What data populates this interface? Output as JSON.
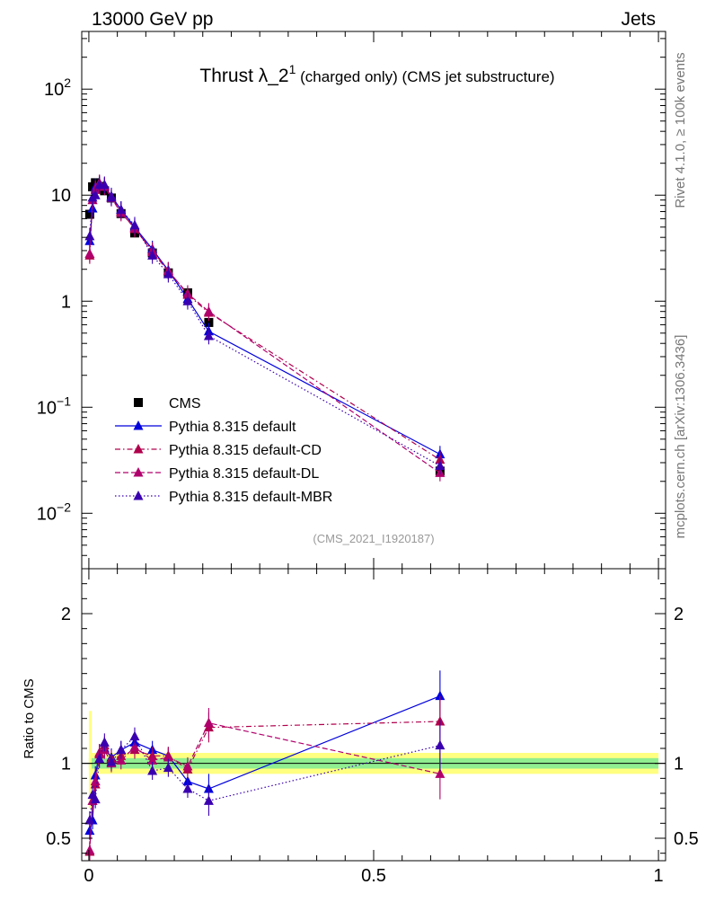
{
  "header": {
    "energy_label": "13000 GeV pp",
    "process_label": "Jets"
  },
  "side_labels": {
    "rivet": "Rivet 4.1.0, ≥ 100k events",
    "mcplots": "mcplots.cern.ch [arXiv:1306.3436]"
  },
  "colors": {
    "cms": "#000000",
    "default": "#0000dd",
    "default_cd": "#b0004c",
    "default_dl": "#b0006c",
    "default_mbr": "#3a00b0",
    "band_inner": "#90ee90",
    "band_outer": "#ffff80"
  },
  "chart_data": [
    {
      "panel": "main",
      "type": "line",
      "title": "Thrust λ_2¹ (charged only) (CMS jet substructure)",
      "title_main": "Thrust λ_2",
      "title_sup": "1",
      "title_rest": " (charged only) (CMS jet substructure)",
      "analysis_tag": "(CMS_2021_I1920187)",
      "yscale": "log",
      "xlim": [
        -0.0125,
        1.0125
      ],
      "ylim": [
        0.003,
        350
      ],
      "ytick_labels": [
        {
          "value": 100,
          "base": "10",
          "exp": "2"
        },
        {
          "value": 10,
          "text": "10"
        },
        {
          "value": 1,
          "text": "1"
        },
        {
          "value": 0.1,
          "base": "10",
          "exp": "−1"
        },
        {
          "value": 0.01,
          "base": "10",
          "exp": "−2"
        }
      ],
      "x": [
        0.0015,
        0.0065,
        0.0115,
        0.0185,
        0.0275,
        0.0395,
        0.0565,
        0.0805,
        0.1115,
        0.1395,
        0.1735,
        0.2105,
        0.6165
      ],
      "series": [
        {
          "name": "CMS",
          "key": "cms",
          "marker": "square",
          "dash": "none",
          "values": [
            6.6,
            12.0,
            13.1,
            12.1,
            11.0,
            9.4,
            6.7,
            4.4,
            2.85,
            1.85,
            1.2,
            0.63,
            0.025
          ]
        },
        {
          "name": "Pythia 8.315 default",
          "key": "default",
          "marker": "triangle",
          "dash": "solid",
          "values": [
            3.7,
            7.5,
            12.0,
            13.0,
            12.2,
            9.8,
            7.3,
            5.0,
            3.1,
            1.95,
            1.05,
            0.52,
            0.036
          ]
        },
        {
          "name": "Pythia 8.315 default-CD",
          "key": "default_cd",
          "marker": "triangle",
          "dash": "dashdot",
          "values": [
            2.7,
            9.0,
            11.2,
            13.0,
            12.3,
            9.6,
            7.0,
            4.8,
            3.0,
            1.95,
            1.15,
            0.78,
            0.032
          ]
        },
        {
          "name": "Pythia 8.315 default-DL",
          "key": "default_dl",
          "marker": "triangle",
          "dash": "dashed",
          "values": [
            2.8,
            9.0,
            11.5,
            12.8,
            12.0,
            9.4,
            6.8,
            4.9,
            2.9,
            1.92,
            1.18,
            0.8,
            0.024
          ]
        },
        {
          "name": "Pythia 8.315 default-MBR",
          "key": "default_mbr",
          "marker": "triangle",
          "dash": "dotted",
          "values": [
            4.1,
            9.5,
            10.0,
            12.5,
            12.5,
            9.5,
            7.3,
            5.2,
            2.7,
            1.8,
            1.0,
            0.47,
            0.028
          ]
        }
      ]
    },
    {
      "panel": "ratio",
      "type": "line",
      "ylabel": "Ratio to CMS",
      "xlim": [
        -0.0125,
        1.0125
      ],
      "ylim": [
        0.35,
        2.3
      ],
      "ytick_labels": [
        0.5,
        1,
        2
      ],
      "xtick_labels": [
        0,
        0.5,
        1
      ],
      "band_x_range": [
        0.0,
        1.0
      ],
      "series": [
        {
          "key": "default",
          "values": [
            0.55,
            0.62,
            0.92,
            1.07,
            1.1,
            1.04,
            1.09,
            1.14,
            1.09,
            1.05,
            0.88,
            0.83,
            1.45
          ]
        },
        {
          "key": "default_cd",
          "values": [
            0.41,
            0.75,
            0.86,
            1.07,
            1.12,
            1.03,
            1.05,
            1.09,
            1.05,
            1.05,
            0.96,
            1.24,
            1.28
          ]
        },
        {
          "key": "default_dl",
          "values": [
            0.42,
            0.75,
            0.88,
            1.06,
            1.09,
            1.0,
            1.02,
            1.11,
            1.02,
            1.04,
            0.98,
            1.27,
            0.93
          ]
        },
        {
          "key": "default_mbr",
          "values": [
            0.62,
            0.79,
            0.76,
            1.03,
            1.14,
            1.01,
            1.09,
            1.18,
            0.95,
            0.97,
            0.83,
            0.75,
            1.12
          ]
        }
      ]
    }
  ]
}
